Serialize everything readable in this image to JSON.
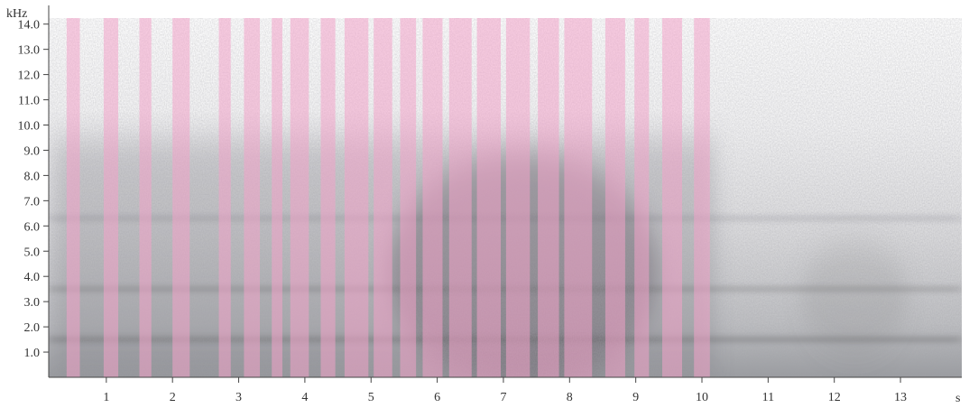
{
  "chart_data": {
    "type": "heatmap",
    "subtype": "spectrogram",
    "title": "",
    "y_unit_label": "kHz",
    "x_unit_label": "s",
    "xlim": [
      0,
      14.0
    ],
    "ylim": [
      0,
      14.4
    ],
    "x_ticks": [
      1,
      2,
      3,
      4,
      5,
      6,
      7,
      8,
      9,
      10,
      11,
      12,
      13
    ],
    "x_tick_labels": [
      "1",
      "2",
      "3",
      "4",
      "5",
      "6",
      "7",
      "8",
      "9",
      "10",
      "11",
      "12",
      "13"
    ],
    "y_ticks": [
      1.0,
      2.0,
      3.0,
      4.0,
      5.0,
      6.0,
      7.0,
      8.0,
      9.0,
      10.0,
      11.0,
      12.0,
      13.0,
      14.0
    ],
    "y_tick_labels": [
      "1.0",
      "2.0",
      "3.0",
      "4.0",
      "5.0",
      "6.0",
      "7.0",
      "8.0",
      "9.0",
      "10.0",
      "11.0",
      "12.0",
      "13.0",
      "14.0"
    ],
    "highlight_color": "#f2a3c8",
    "spectrogram_color": "#5a5a60",
    "highlighted_segments": [
      [
        0.4,
        0.6
      ],
      [
        0.96,
        1.18
      ],
      [
        1.5,
        1.68
      ],
      [
        2.0,
        2.26
      ],
      [
        2.7,
        2.88
      ],
      [
        3.08,
        3.32
      ],
      [
        3.5,
        3.66
      ],
      [
        3.78,
        4.06
      ],
      [
        4.24,
        4.46
      ],
      [
        4.6,
        4.96
      ],
      [
        5.04,
        5.32
      ],
      [
        5.44,
        5.68
      ],
      [
        5.78,
        6.08
      ],
      [
        6.18,
        6.52
      ],
      [
        6.6,
        6.96
      ],
      [
        7.04,
        7.4
      ],
      [
        7.52,
        7.84
      ],
      [
        7.92,
        8.34
      ],
      [
        8.54,
        8.84
      ],
      [
        8.98,
        9.2
      ],
      [
        9.4,
        9.7
      ],
      [
        9.88,
        10.12
      ]
    ],
    "energy_bands_khz": [
      {
        "center": 1.5,
        "strength": 0.9
      },
      {
        "center": 3.5,
        "strength": 0.7
      },
      {
        "center": 6.3,
        "strength": 0.45
      }
    ],
    "activity_span_s": [
      0.2,
      10.2
    ],
    "peak_activity_s": 7.3
  }
}
